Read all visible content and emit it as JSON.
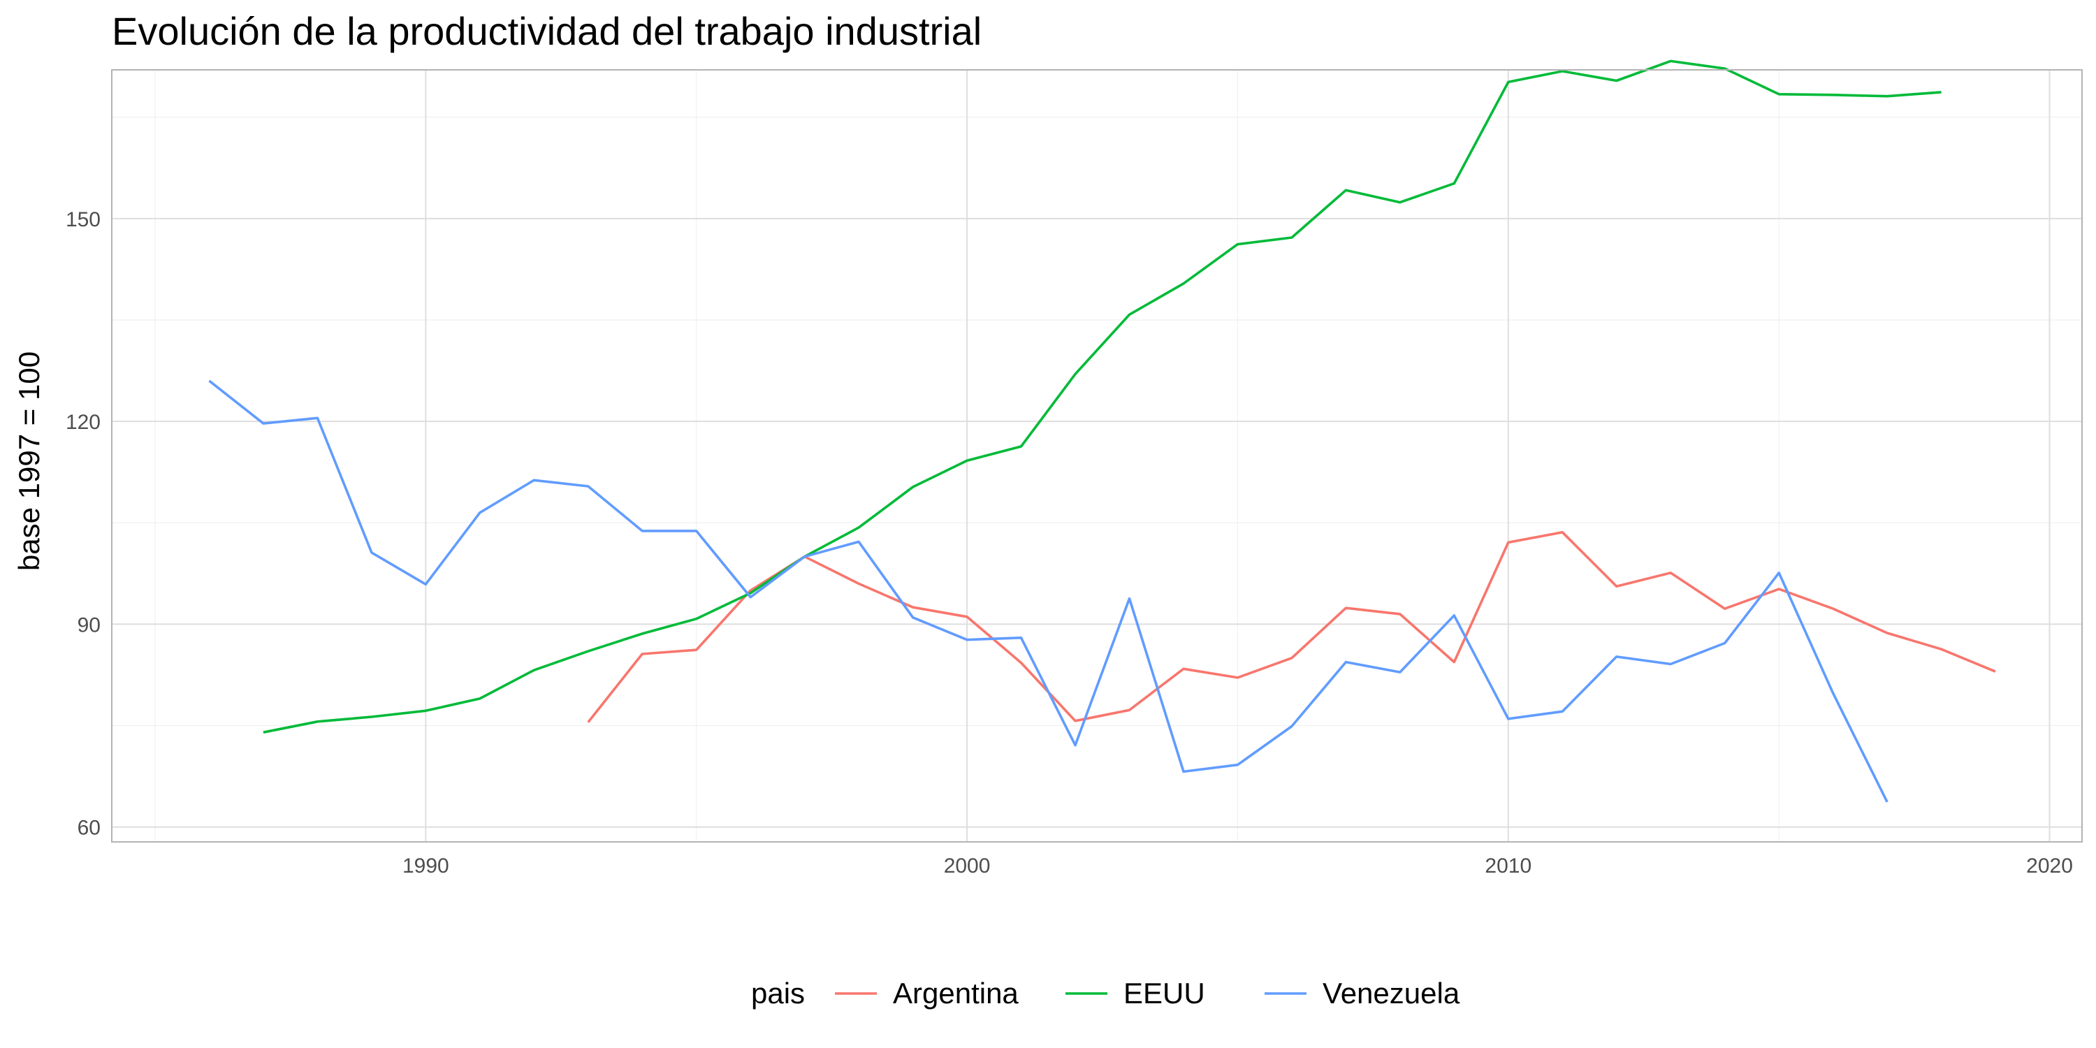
{
  "chart_data": {
    "type": "line",
    "title": "Evolución de la productividad del trabajo industrial",
    "xlabel": "",
    "ylabel": "base 1997 = 100",
    "xlim": [
      1984.2,
      2020.6
    ],
    "ylim": [
      57.8,
      172.0
    ],
    "x_ticks": [
      1990,
      2000,
      2010,
      2020
    ],
    "y_ticks": [
      60,
      90,
      120,
      150
    ],
    "grid": true,
    "legend_title": "pais",
    "legend_position": "bottom",
    "series": [
      {
        "name": "Argentina",
        "color": "#F8766D",
        "x": [
          1993,
          1994,
          1995,
          1996,
          1997,
          1998,
          1999,
          2000,
          2001,
          2002,
          2003,
          2004,
          2005,
          2006,
          2007,
          2008,
          2009,
          2010,
          2011,
          2012,
          2013,
          2014,
          2015,
          2016,
          2017,
          2018,
          2019
        ],
        "y": [
          75.5,
          85.6,
          86.2,
          95.0,
          100.0,
          96.0,
          92.5,
          91.1,
          84.3,
          75.7,
          77.3,
          83.4,
          82.1,
          85.0,
          92.4,
          91.5,
          84.4,
          102.1,
          103.6,
          95.6,
          97.6,
          92.3,
          95.2,
          92.3,
          88.7,
          86.3,
          83.0
        ]
      },
      {
        "name": "EEUU",
        "color": "#00BA38",
        "x": [
          1987,
          1988,
          1989,
          1990,
          1991,
          1992,
          1993,
          1994,
          1995,
          1996,
          1997,
          1998,
          1999,
          2000,
          2001,
          2002,
          2003,
          2004,
          2005,
          2006,
          2007,
          2008,
          2009,
          2010,
          2011,
          2012,
          2013,
          2014,
          2015,
          2016,
          2017,
          2018
        ],
        "y": [
          74.0,
          75.6,
          76.3,
          77.2,
          79.0,
          83.2,
          86.0,
          88.6,
          90.8,
          94.6,
          100.0,
          104.3,
          110.3,
          114.2,
          116.3,
          127.0,
          135.8,
          140.4,
          146.2,
          147.2,
          154.2,
          152.4,
          155.2,
          170.2,
          171.8,
          170.4,
          173.3,
          172.2,
          168.4,
          168.3,
          168.1,
          168.7
        ]
      },
      {
        "name": "Venezuela",
        "color": "#619CFF",
        "x": [
          1986,
          1987,
          1988,
          1989,
          1990,
          1991,
          1992,
          1993,
          1994,
          1995,
          1996,
          1997,
          1998,
          1999,
          2000,
          2001,
          2002,
          2003,
          2004,
          2005,
          2006,
          2007,
          2008,
          2009,
          2010,
          2011,
          2012,
          2013,
          2014,
          2015,
          2016,
          2017
        ],
        "y": [
          126.0,
          119.7,
          120.5,
          100.6,
          95.9,
          106.5,
          111.3,
          110.4,
          103.8,
          103.8,
          94.0,
          100.0,
          102.2,
          91.0,
          87.7,
          88.0,
          72.1,
          93.8,
          68.2,
          69.2,
          74.9,
          84.4,
          82.9,
          91.3,
          76.0,
          77.1,
          85.2,
          84.1,
          87.2,
          97.6,
          79.8,
          63.7
        ]
      }
    ]
  }
}
